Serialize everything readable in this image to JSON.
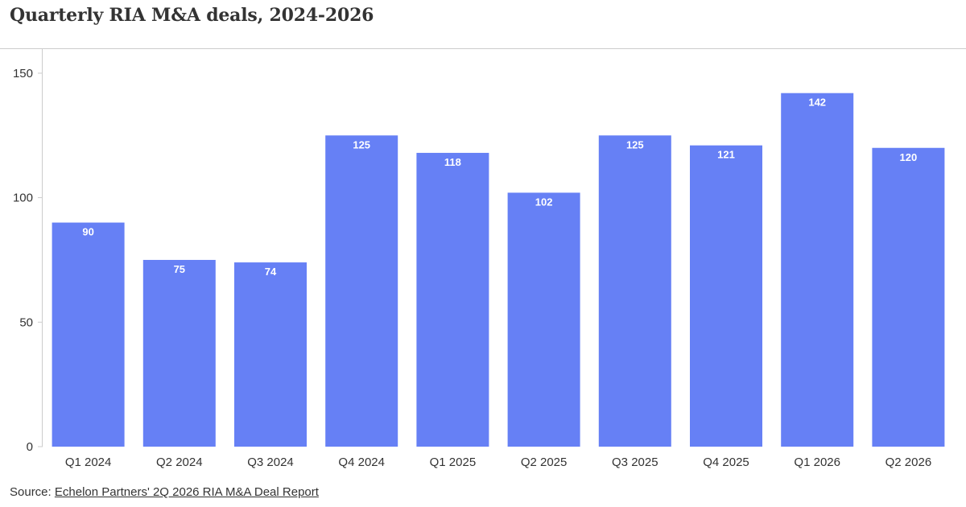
{
  "chart_data": {
    "type": "bar",
    "title": "Quarterly RIA M&A deals, 2024-2026",
    "xlabel": "",
    "ylabel": "",
    "categories": [
      "Q1 2024",
      "Q2 2024",
      "Q3 2024",
      "Q4 2024",
      "Q1 2025",
      "Q2 2025",
      "Q3 2025",
      "Q4 2025",
      "Q1 2026",
      "Q2 2026"
    ],
    "values": [
      90,
      75,
      74,
      125,
      118,
      102,
      125,
      121,
      142,
      120
    ],
    "ylim": [
      0,
      160
    ],
    "yticks": [
      0,
      50,
      100,
      150
    ],
    "data_labels": true,
    "grid": false,
    "bar_color": "#6680f5"
  },
  "source": {
    "prefix": "Source: ",
    "link_text": "Echelon Partners' 2Q 2026 RIA M&A Deal Report"
  }
}
